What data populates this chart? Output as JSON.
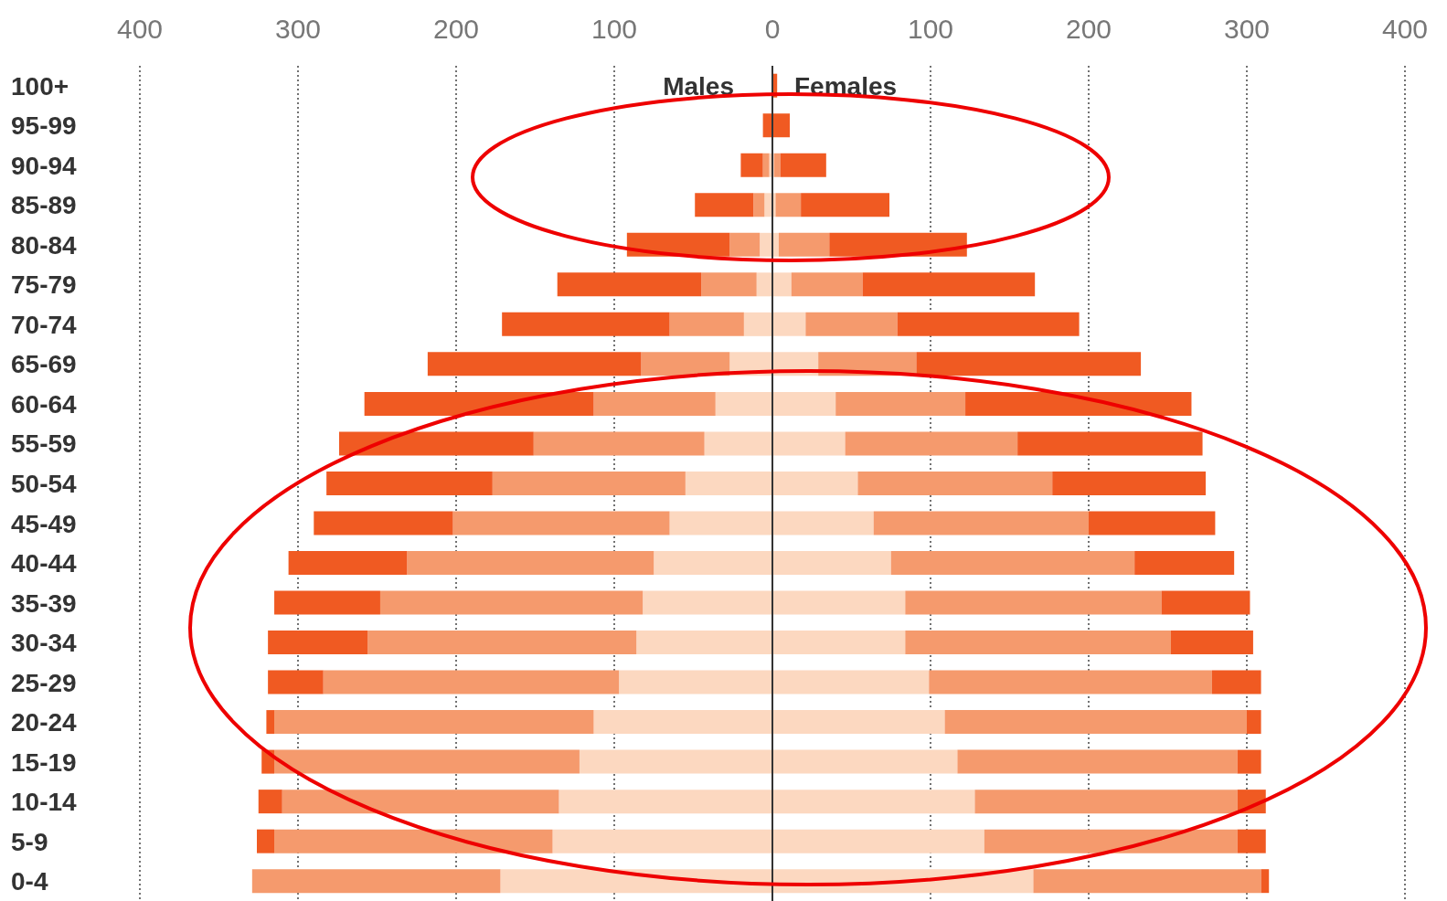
{
  "chart_data": {
    "type": "bar",
    "orientation": "horizontal",
    "stacked": true,
    "categories": [
      "100+",
      "95-99",
      "90-94",
      "85-89",
      "80-84",
      "75-79",
      "70-74",
      "65-69",
      "60-64",
      "55-59",
      "50-54",
      "45-49",
      "40-44",
      "35-39",
      "30-34",
      "25-29",
      "20-24",
      "15-19",
      "10-14",
      "5-9",
      "0-4"
    ],
    "series": [
      {
        "color": "#fcd8c0",
        "values": [
          null,
          null,
          -2,
          -5,
          -8,
          -10,
          -18,
          -27,
          -36,
          -43,
          -55,
          -65,
          -75,
          -82,
          -86,
          -97,
          -113,
          -122,
          -135,
          -139,
          -172
        ]
      },
      {
        "color": "#f59a6d",
        "values": [
          null,
          null,
          -4,
          -7,
          -19,
          -35,
          -47,
          -56,
          -77,
          -108,
          -122,
          -137,
          -156,
          -166,
          -170,
          -187,
          -202,
          -193,
          -175,
          -176,
          -157
        ]
      },
      {
        "color": "#f05a22",
        "values": [
          null,
          -6,
          -14,
          -37,
          -65,
          -91,
          -106,
          -135,
          -145,
          -123,
          -105,
          -88,
          -75,
          -67,
          -63,
          -35,
          -5,
          -8,
          -15,
          -11,
          null
        ]
      },
      {
        "color": "#fcd8c0",
        "values": [
          null,
          null,
          1,
          2,
          4,
          12,
          21,
          29,
          40,
          46,
          54,
          64,
          75,
          84,
          84,
          99,
          109,
          117,
          128,
          134,
          165
        ]
      },
      {
        "color": "#f59a6d",
        "values": [
          null,
          null,
          4,
          16,
          32,
          45,
          58,
          62,
          82,
          109,
          123,
          136,
          154,
          162,
          168,
          179,
          191,
          177,
          166,
          160,
          144
        ]
      },
      {
        "color": "#f05a22",
        "values": [
          3,
          11,
          29,
          56,
          87,
          109,
          115,
          142,
          143,
          117,
          97,
          80,
          63,
          56,
          52,
          31,
          9,
          15,
          18,
          18,
          5
        ]
      }
    ],
    "xlim": [
      -400,
      400
    ],
    "xticks": [
      {
        "value": -400,
        "label": "400"
      },
      {
        "value": -300,
        "label": "300"
      },
      {
        "value": -200,
        "label": "200"
      },
      {
        "value": -100,
        "label": "100"
      },
      0,
      100,
      200,
      300,
      400
    ],
    "grid": "x",
    "ref_lines": [
      {
        "axis": "x",
        "value": 0,
        "color": "#333333"
      }
    ],
    "annotations": [
      "Males",
      "Females"
    ]
  }
}
